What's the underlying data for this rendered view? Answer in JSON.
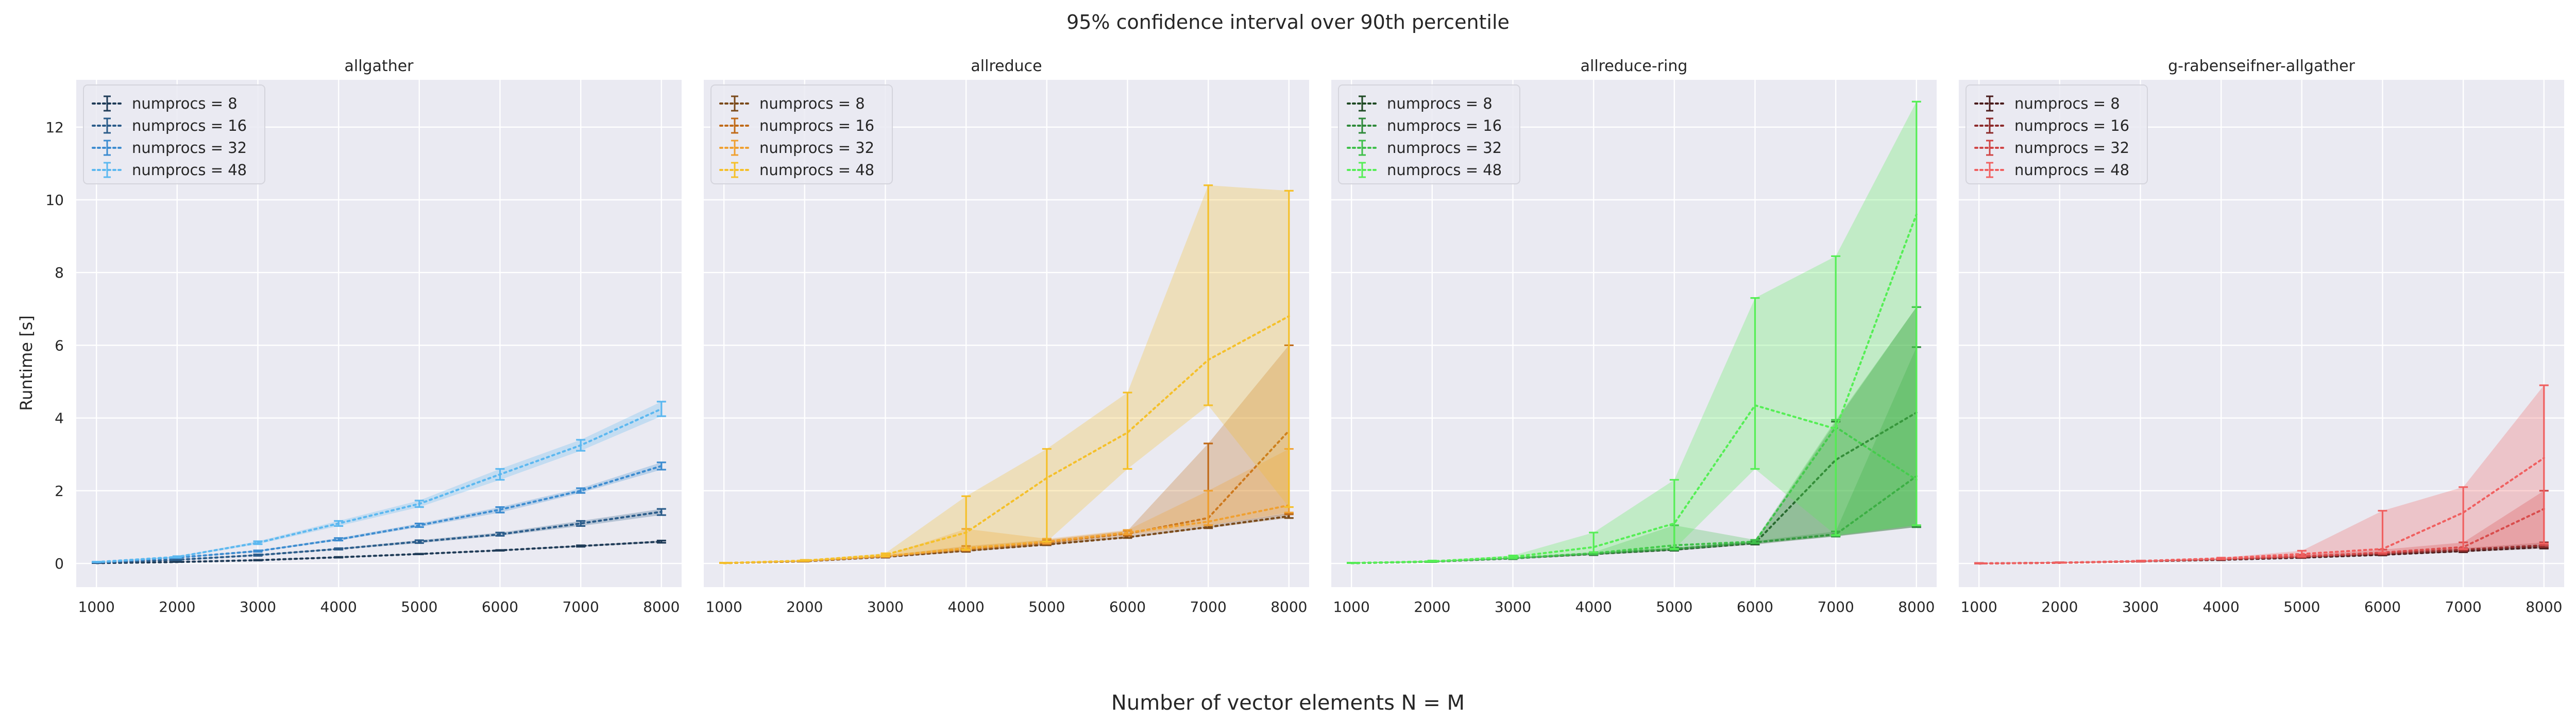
{
  "figure": {
    "title": "95% confidence interval over 90th percentile",
    "xlabel": "Number of vector elements N = M",
    "ylabel": "Runtime [s]"
  },
  "axes": {
    "xlim": [
      750,
      8250
    ],
    "ylim": [
      -0.65,
      13.3
    ],
    "xticks": [
      1000,
      2000,
      3000,
      4000,
      5000,
      6000,
      7000,
      8000
    ],
    "yticks": [
      0,
      2,
      4,
      6,
      8,
      10,
      12
    ],
    "grid": true,
    "legend_position": "upper-left"
  },
  "chart_data": [
    {
      "type": "line",
      "title": "allgather",
      "x": [
        1000,
        2000,
        3000,
        4000,
        5000,
        6000,
        7000,
        8000
      ],
      "series": [
        {
          "name": "numprocs = 8",
          "color": "#1f3b57",
          "values": [
            0.01,
            0.04,
            0.09,
            0.17,
            0.26,
            0.36,
            0.48,
            0.6
          ],
          "lower": [
            0.01,
            0.04,
            0.08,
            0.16,
            0.25,
            0.35,
            0.46,
            0.57
          ],
          "upper": [
            0.01,
            0.05,
            0.1,
            0.18,
            0.27,
            0.37,
            0.5,
            0.63
          ]
        },
        {
          "name": "numprocs = 16",
          "color": "#2b5c8a",
          "values": [
            0.02,
            0.1,
            0.23,
            0.4,
            0.6,
            0.8,
            1.1,
            1.42
          ],
          "lower": [
            0.02,
            0.09,
            0.21,
            0.38,
            0.56,
            0.76,
            1.03,
            1.33
          ],
          "upper": [
            0.02,
            0.11,
            0.25,
            0.42,
            0.64,
            0.85,
            1.17,
            1.5
          ]
        },
        {
          "name": "numprocs = 32",
          "color": "#3d8cd0",
          "values": [
            0.03,
            0.16,
            0.34,
            0.66,
            1.05,
            1.48,
            2.0,
            2.68
          ],
          "lower": [
            0.03,
            0.15,
            0.32,
            0.63,
            1.0,
            1.4,
            1.94,
            2.58
          ],
          "upper": [
            0.03,
            0.17,
            0.36,
            0.7,
            1.1,
            1.55,
            2.07,
            2.78
          ]
        },
        {
          "name": "numprocs = 48",
          "color": "#5cb8f0",
          "values": [
            0.04,
            0.18,
            0.57,
            1.1,
            1.64,
            2.45,
            3.25,
            4.25
          ],
          "lower": [
            0.04,
            0.16,
            0.53,
            1.03,
            1.55,
            2.3,
            3.1,
            4.05
          ],
          "upper": [
            0.05,
            0.2,
            0.61,
            1.17,
            1.73,
            2.6,
            3.4,
            4.45
          ]
        }
      ]
    },
    {
      "type": "line",
      "title": "allreduce",
      "x": [
        1000,
        2000,
        3000,
        4000,
        5000,
        6000,
        7000,
        8000
      ],
      "series": [
        {
          "name": "numprocs = 8",
          "color": "#7a4a1a",
          "values": [
            0.01,
            0.06,
            0.18,
            0.35,
            0.52,
            0.72,
            1.0,
            1.3
          ],
          "lower": [
            0.01,
            0.05,
            0.16,
            0.32,
            0.5,
            0.7,
            0.97,
            1.25
          ],
          "upper": [
            0.02,
            0.07,
            0.2,
            0.37,
            0.56,
            0.76,
            1.05,
            1.38
          ]
        },
        {
          "name": "numprocs = 16",
          "color": "#c06a18",
          "values": [
            0.01,
            0.07,
            0.2,
            0.4,
            0.58,
            0.82,
            1.25,
            3.65
          ],
          "lower": [
            0.01,
            0.06,
            0.18,
            0.35,
            0.53,
            0.76,
            1.05,
            1.35
          ],
          "upper": [
            0.02,
            0.08,
            0.22,
            0.48,
            0.65,
            0.9,
            3.3,
            6.0
          ]
        },
        {
          "name": "numprocs = 32",
          "color": "#f0a030",
          "values": [
            0.01,
            0.07,
            0.2,
            0.42,
            0.6,
            0.85,
            1.15,
            1.6
          ],
          "lower": [
            0.01,
            0.06,
            0.18,
            0.36,
            0.55,
            0.8,
            1.05,
            1.4
          ],
          "upper": [
            0.02,
            0.08,
            0.23,
            0.95,
            0.68,
            0.92,
            2.0,
            3.15
          ]
        },
        {
          "name": "numprocs = 48",
          "color": "#f5c02a",
          "values": [
            0.01,
            0.08,
            0.24,
            0.85,
            2.35,
            3.6,
            5.6,
            6.8
          ],
          "lower": [
            0.01,
            0.07,
            0.2,
            0.38,
            0.6,
            2.6,
            4.35,
            1.55
          ],
          "upper": [
            0.02,
            0.1,
            0.28,
            1.85,
            3.15,
            4.7,
            10.4,
            10.25
          ]
        }
      ]
    },
    {
      "type": "line",
      "title": "allreduce-ring",
      "x": [
        1000,
        2000,
        3000,
        4000,
        5000,
        6000,
        7000,
        8000
      ],
      "series": [
        {
          "name": "numprocs = 8",
          "color": "#1f4a24",
          "values": [
            0.01,
            0.05,
            0.14,
            0.26,
            0.38,
            0.56,
            2.85,
            4.15
          ],
          "lower": [
            0.01,
            0.04,
            0.12,
            0.23,
            0.35,
            0.52,
            0.75,
            1.0
          ],
          "upper": [
            0.02,
            0.06,
            0.16,
            0.29,
            0.42,
            0.6,
            3.9,
            7.05
          ]
        },
        {
          "name": "numprocs = 16",
          "color": "#2e8a3a",
          "values": [
            0.01,
            0.05,
            0.14,
            0.27,
            0.4,
            0.58,
            0.8,
            2.4
          ],
          "lower": [
            0.01,
            0.04,
            0.12,
            0.24,
            0.36,
            0.54,
            0.74,
            1.0
          ],
          "upper": [
            0.02,
            0.06,
            0.16,
            0.3,
            0.44,
            0.62,
            0.88,
            5.95
          ]
        },
        {
          "name": "numprocs = 32",
          "color": "#3fc04a",
          "values": [
            0.01,
            0.05,
            0.15,
            0.28,
            0.5,
            0.6,
            3.75,
            2.3
          ],
          "lower": [
            0.01,
            0.04,
            0.13,
            0.25,
            0.38,
            0.56,
            0.76,
            1.05
          ],
          "upper": [
            0.02,
            0.06,
            0.17,
            0.31,
            1.05,
            0.65,
            3.95,
            7.05
          ]
        },
        {
          "name": "numprocs = 48",
          "color": "#55ee55",
          "values": [
            0.01,
            0.06,
            0.18,
            0.45,
            1.1,
            4.35,
            3.7,
            9.6
          ],
          "lower": [
            0.01,
            0.05,
            0.15,
            0.3,
            0.4,
            2.6,
            0.78,
            1.05
          ],
          "upper": [
            0.02,
            0.08,
            0.22,
            0.85,
            2.3,
            7.3,
            8.45,
            12.7
          ]
        }
      ]
    },
    {
      "type": "line",
      "title": "g-rabenseifner-allgather",
      "x": [
        1000,
        2000,
        3000,
        4000,
        5000,
        6000,
        7000,
        8000
      ],
      "series": [
        {
          "name": "numprocs = 8",
          "color": "#4a1c1c",
          "values": [
            0.0,
            0.02,
            0.06,
            0.1,
            0.16,
            0.24,
            0.34,
            0.45
          ],
          "lower": [
            0.0,
            0.02,
            0.05,
            0.09,
            0.15,
            0.22,
            0.31,
            0.41
          ],
          "upper": [
            0.01,
            0.03,
            0.07,
            0.11,
            0.18,
            0.26,
            0.37,
            0.5
          ]
        },
        {
          "name": "numprocs = 16",
          "color": "#8c2a2a",
          "values": [
            0.0,
            0.02,
            0.06,
            0.11,
            0.18,
            0.27,
            0.38,
            0.5
          ],
          "lower": [
            0.0,
            0.02,
            0.05,
            0.1,
            0.16,
            0.24,
            0.34,
            0.45
          ],
          "upper": [
            0.01,
            0.03,
            0.07,
            0.12,
            0.2,
            0.3,
            0.42,
            0.58
          ]
        },
        {
          "name": "numprocs = 32",
          "color": "#d04545",
          "values": [
            0.0,
            0.02,
            0.06,
            0.12,
            0.2,
            0.3,
            0.45,
            1.5
          ],
          "lower": [
            0.0,
            0.02,
            0.05,
            0.11,
            0.17,
            0.26,
            0.38,
            0.5
          ],
          "upper": [
            0.01,
            0.03,
            0.07,
            0.13,
            0.24,
            0.38,
            0.58,
            2.0
          ]
        },
        {
          "name": "numprocs = 48",
          "color": "#f06060",
          "values": [
            0.0,
            0.02,
            0.07,
            0.14,
            0.26,
            0.4,
            1.4,
            2.9
          ],
          "lower": [
            0.0,
            0.02,
            0.06,
            0.12,
            0.2,
            0.3,
            0.4,
            0.55
          ],
          "upper": [
            0.01,
            0.03,
            0.08,
            0.16,
            0.35,
            1.45,
            2.1,
            4.9
          ]
        }
      ]
    }
  ]
}
